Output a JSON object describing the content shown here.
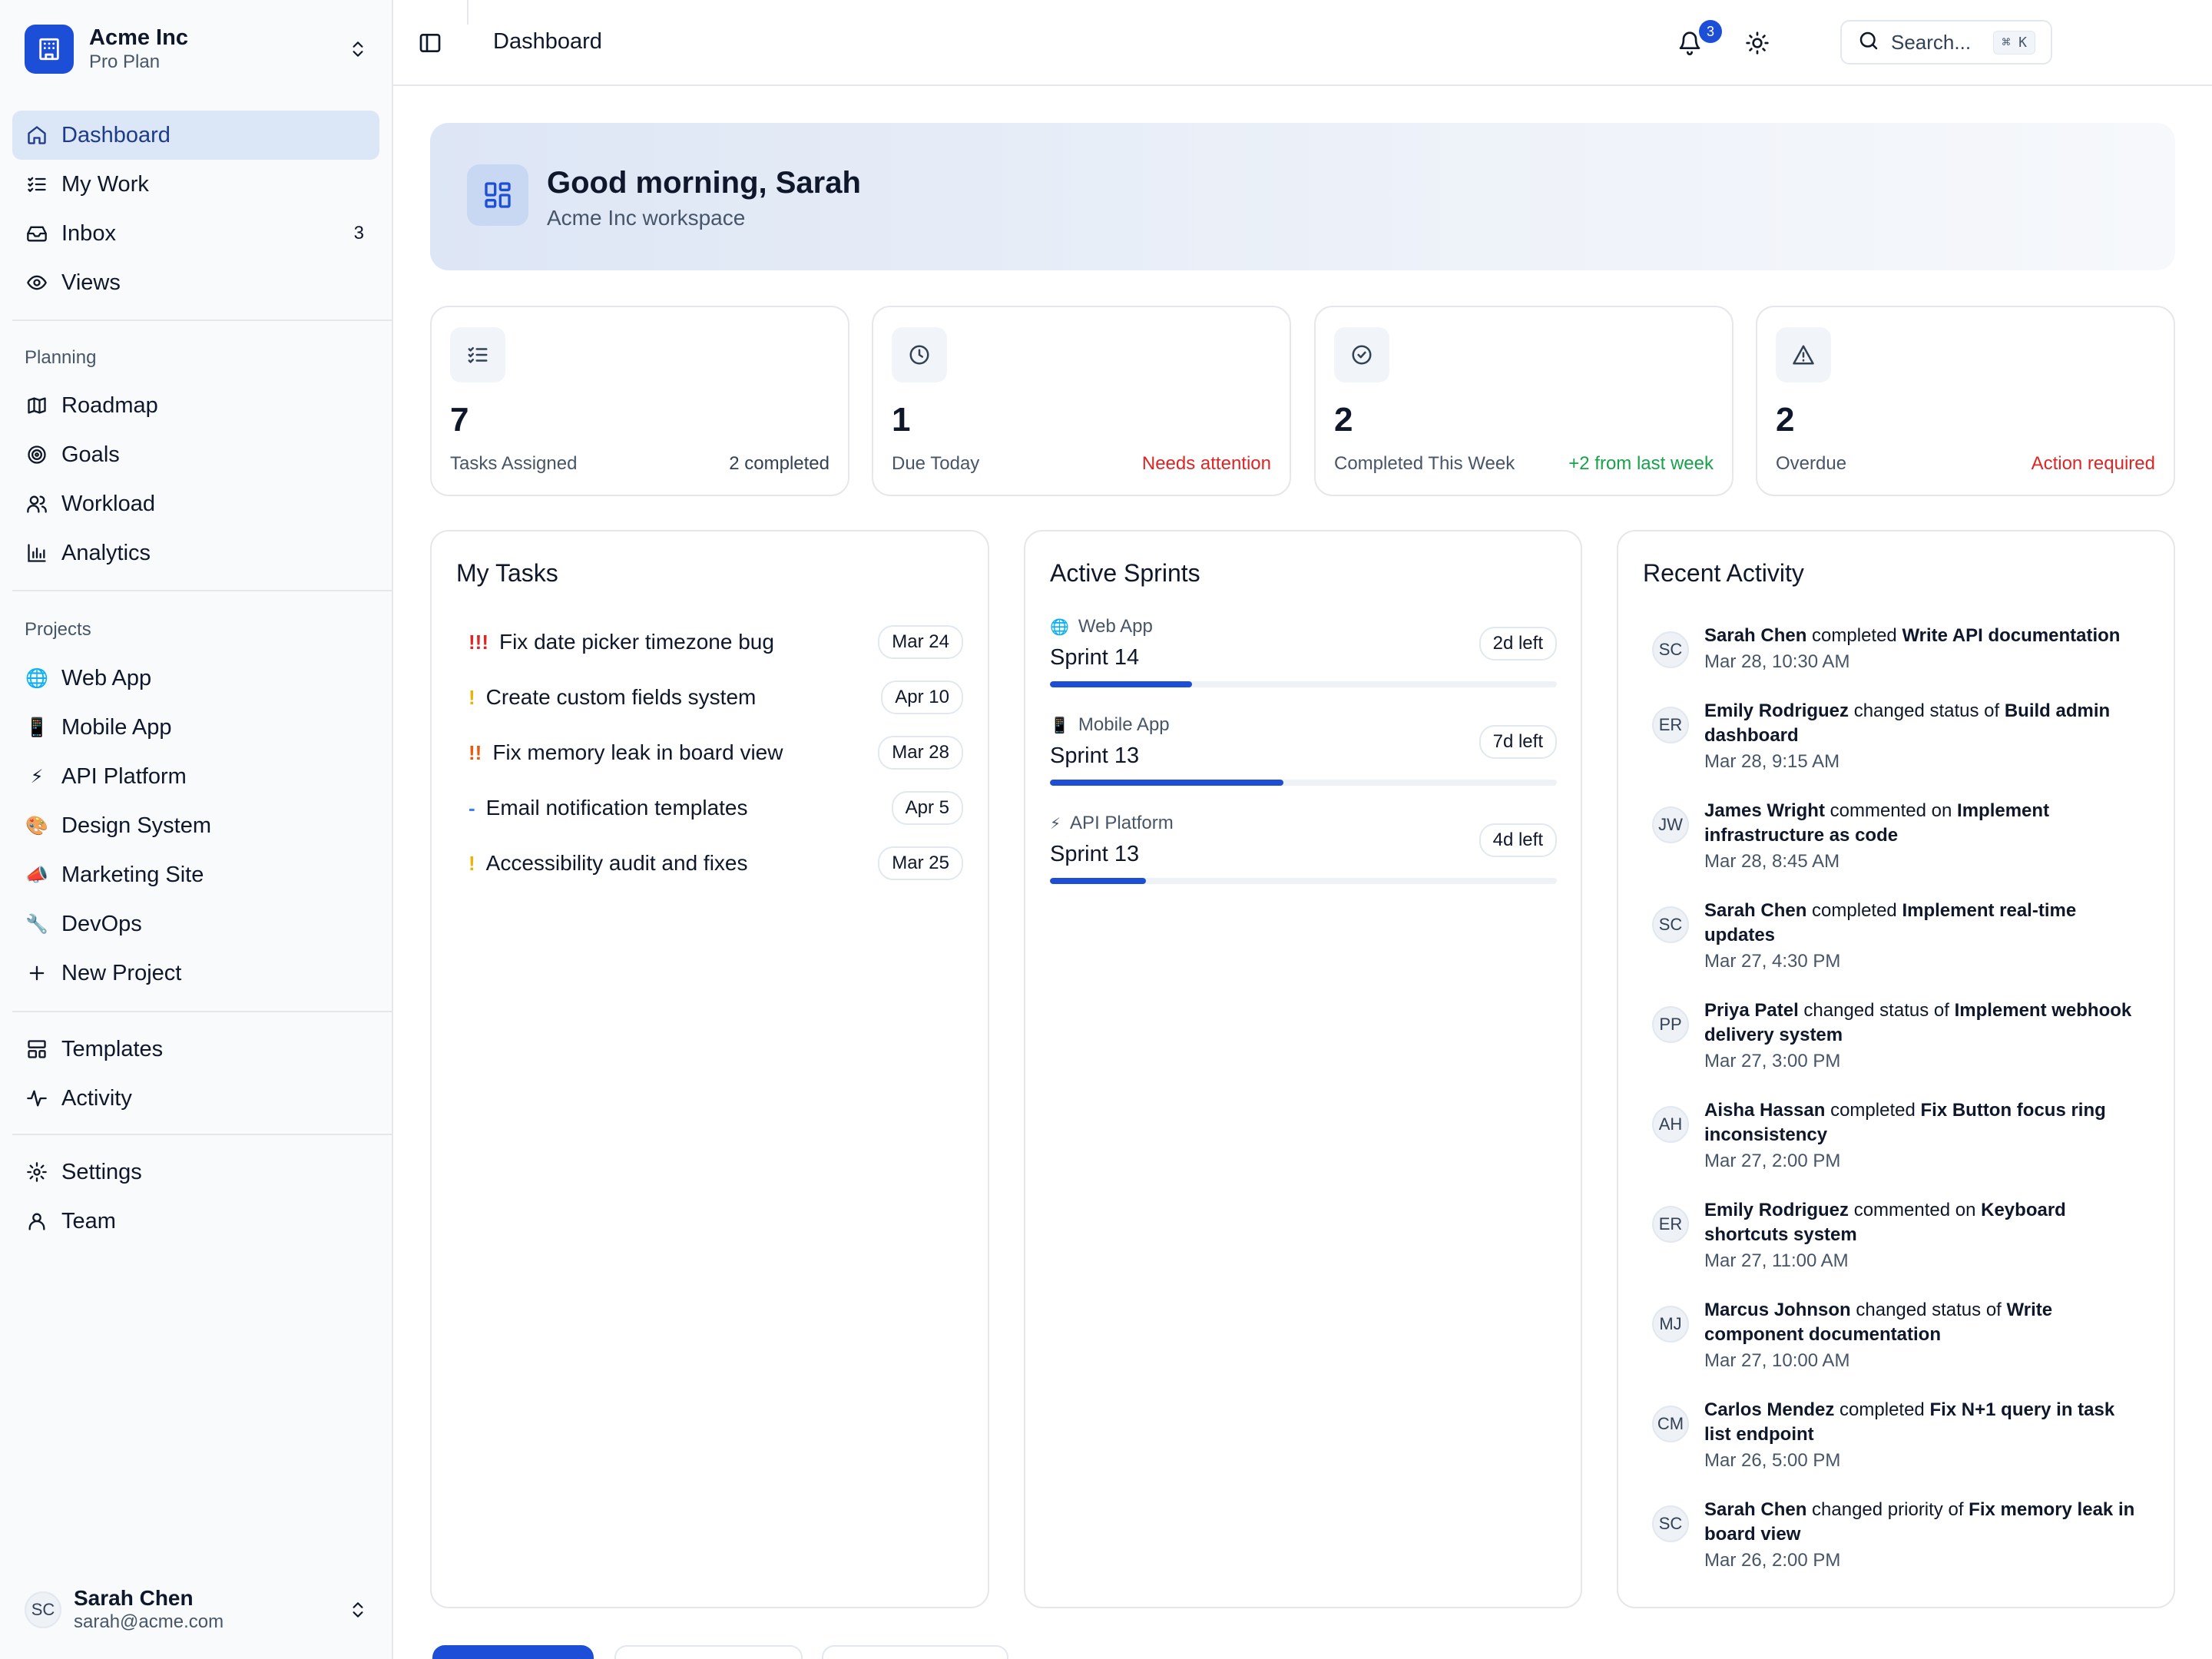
{
  "workspace": {
    "name": "Acme Inc",
    "plan": "Pro Plan"
  },
  "nav": {
    "primary": [
      {
        "label": "Dashboard",
        "icon": "home-icon",
        "active": true
      },
      {
        "label": "My Work",
        "icon": "checklist-icon"
      },
      {
        "label": "Inbox",
        "icon": "inbox-icon",
        "count": "3"
      },
      {
        "label": "Views",
        "icon": "eye-icon"
      }
    ],
    "planning_label": "Planning",
    "planning": [
      {
        "label": "Roadmap",
        "icon": "map-icon"
      },
      {
        "label": "Goals",
        "icon": "target-icon"
      },
      {
        "label": "Workload",
        "icon": "users-icon"
      },
      {
        "label": "Analytics",
        "icon": "bar-chart-icon"
      }
    ],
    "projects_label": "Projects",
    "projects": [
      {
        "label": "Web App",
        "emoji": "🌐"
      },
      {
        "label": "Mobile App",
        "emoji": "📱"
      },
      {
        "label": "API Platform",
        "emoji": "⚡"
      },
      {
        "label": "Design System",
        "emoji": "🎨"
      },
      {
        "label": "Marketing Site",
        "emoji": "📣"
      },
      {
        "label": "DevOps",
        "emoji": "🔧"
      }
    ],
    "new_project": "New Project",
    "tools": [
      {
        "label": "Templates",
        "icon": "template-icon"
      },
      {
        "label": "Activity",
        "icon": "activity-icon"
      }
    ],
    "settings": [
      {
        "label": "Settings",
        "icon": "gear-icon"
      },
      {
        "label": "Team",
        "icon": "user-icon"
      }
    ]
  },
  "user": {
    "initials": "SC",
    "name": "Sarah Chen",
    "email": "sarah@acme.com"
  },
  "header": {
    "breadcrumb": "Dashboard",
    "search_placeholder": "Search...",
    "search_shortcut": "⌘ K",
    "notifications_count": "3"
  },
  "hero": {
    "title": "Good morning, Sarah",
    "subtitle": "Acme Inc workspace"
  },
  "stats": [
    {
      "value": "7",
      "label": "Tasks Assigned",
      "note": "2 completed",
      "note_color": "#334155",
      "icon": "checklist-icon"
    },
    {
      "value": "1",
      "label": "Due Today",
      "note": "Needs attention",
      "note_color": "#dc2626",
      "icon": "clock-icon"
    },
    {
      "value": "2",
      "label": "Completed This Week",
      "note": "+2 from last week",
      "note_color": "#16a34a",
      "icon": "check-circle-icon"
    },
    {
      "value": "2",
      "label": "Overdue",
      "note": "Action required",
      "note_color": "#dc2626",
      "icon": "warning-icon"
    }
  ],
  "my_tasks": {
    "title": "My Tasks",
    "items": [
      {
        "priority": "!!!",
        "priority_color": "#dc2626",
        "title": "Fix date picker timezone bug",
        "due": "Mar 24"
      },
      {
        "priority": "!",
        "priority_color": "#eab308",
        "title": "Create custom fields system",
        "due": "Apr 10"
      },
      {
        "priority": "!!",
        "priority_color": "#ea580c",
        "title": "Fix memory leak in board view",
        "due": "Mar 28"
      },
      {
        "priority": "-",
        "priority_color": "#3b82f6",
        "title": "Email notification templates",
        "due": "Apr 5"
      },
      {
        "priority": "!",
        "priority_color": "#eab308",
        "title": "Accessibility audit and fixes",
        "due": "Mar 25"
      }
    ]
  },
  "sprints": {
    "title": "Active Sprints",
    "items": [
      {
        "project": "Web App",
        "emoji": "🌐",
        "name": "Sprint 14",
        "left": "2d left",
        "progress": 0.28
      },
      {
        "project": "Mobile App",
        "emoji": "📱",
        "name": "Sprint 13",
        "left": "7d left",
        "progress": 0.46
      },
      {
        "project": "API Platform",
        "emoji": "⚡",
        "name": "Sprint 13",
        "left": "4d left",
        "progress": 0.19
      }
    ]
  },
  "activity": {
    "title": "Recent Activity",
    "items": [
      {
        "initials": "SC",
        "who": "Sarah Chen",
        "verb": " completed ",
        "what": "Write API documentation",
        "time": "Mar 28, 10:30 AM"
      },
      {
        "initials": "ER",
        "who": "Emily Rodriguez",
        "verb": " changed status of ",
        "what": "Build admin dashboard",
        "time": "Mar 28, 9:15 AM"
      },
      {
        "initials": "JW",
        "who": "James Wright",
        "verb": " commented on ",
        "what": "Implement infrastructure as code",
        "time": "Mar 28, 8:45 AM"
      },
      {
        "initials": "SC",
        "who": "Sarah Chen",
        "verb": " completed ",
        "what": "Implement real-time updates",
        "time": "Mar 27, 4:30 PM"
      },
      {
        "initials": "PP",
        "who": "Priya Patel",
        "verb": " changed status of ",
        "what": "Implement webhook delivery system",
        "time": "Mar 27, 3:00 PM"
      },
      {
        "initials": "AH",
        "who": "Aisha Hassan",
        "verb": " completed ",
        "what": "Fix Button focus ring inconsistency",
        "time": "Mar 27, 2:00 PM"
      },
      {
        "initials": "ER",
        "who": "Emily Rodriguez",
        "verb": " commented on ",
        "what": "Keyboard shortcuts system",
        "time": "Mar 27, 11:00 AM"
      },
      {
        "initials": "MJ",
        "who": "Marcus Johnson",
        "verb": " changed status of ",
        "what": "Write component documentation",
        "time": "Mar 27, 10:00 AM"
      },
      {
        "initials": "CM",
        "who": "Carlos Mendez",
        "verb": " completed ",
        "what": "Fix N+1 query in task list endpoint",
        "time": "Mar 26, 5:00 PM"
      },
      {
        "initials": "SC",
        "who": "Sarah Chen",
        "verb": " changed priority of ",
        "what": "Fix memory leak in board view",
        "time": "Mar 26, 2:00 PM"
      }
    ]
  },
  "colors": {
    "accent": "#1d4ed8",
    "active_nav_bg": "#dbe6f7",
    "border": "#e5e7eb"
  }
}
